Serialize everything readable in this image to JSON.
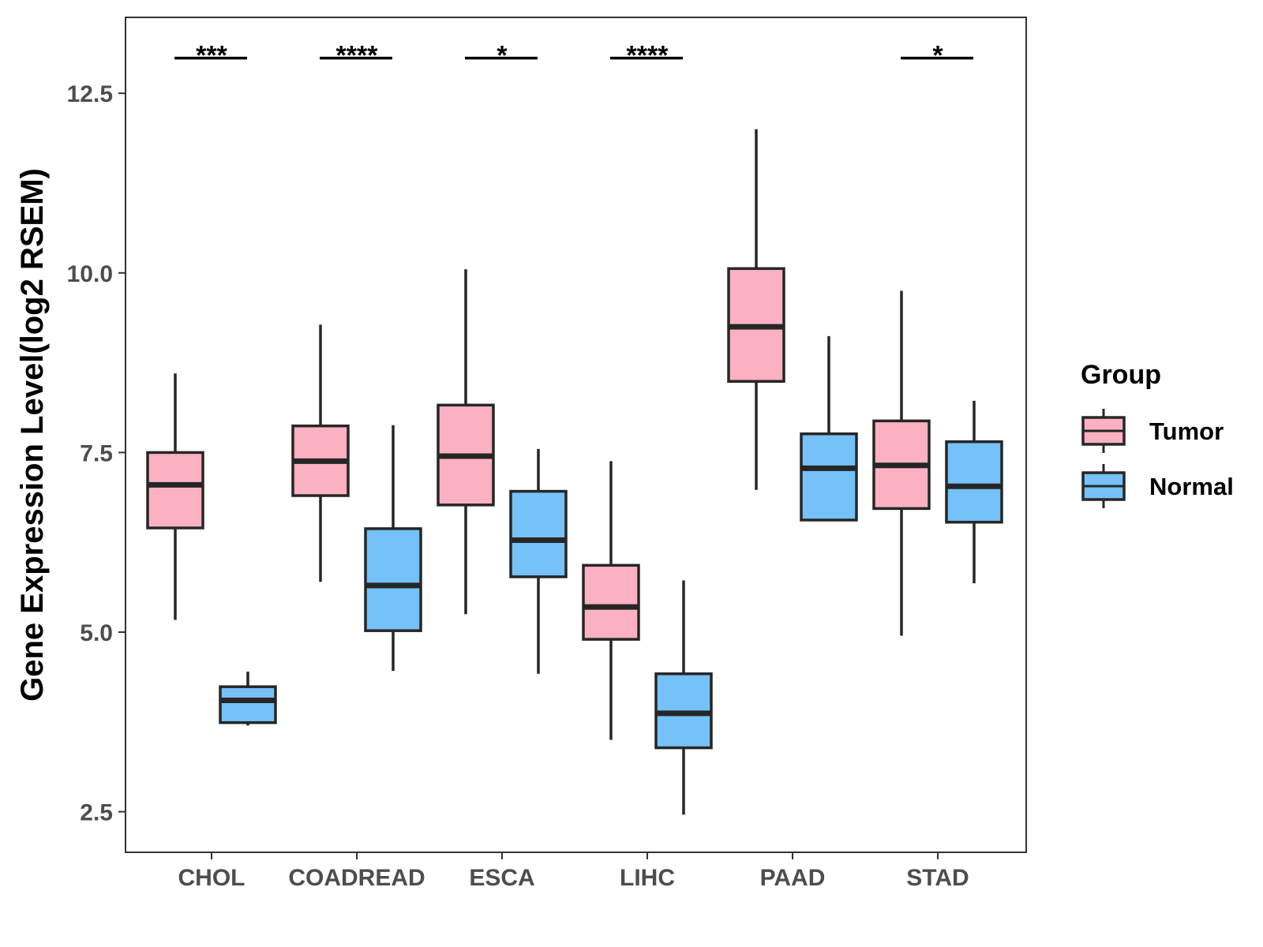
{
  "chart_data": {
    "type": "boxplot",
    "title": "",
    "xlabel": "",
    "ylabel": "Gene Expression Level(log2 RSEM)",
    "ylim": [
      1.9,
      13.5
    ],
    "yticks": [
      2.5,
      5.0,
      7.5,
      10.0,
      12.5
    ],
    "ytick_labels": [
      "2.5",
      "5.0",
      "7.5",
      "10.0",
      "12.5"
    ],
    "grid": false,
    "categories": [
      "CHOL",
      "COADREAD",
      "ESCA",
      "LIHC",
      "PAAD",
      "STAD"
    ],
    "legend": {
      "title": "Group",
      "position": "right",
      "entries": [
        {
          "name": "Tumor",
          "color": "#fbb1c2"
        },
        {
          "name": "Normal",
          "color": "#75c1f8"
        }
      ]
    },
    "series": [
      {
        "name": "Tumor",
        "color": "#fbb1c2",
        "boxes": [
          {
            "category": "CHOL",
            "whisker_low": 5.17,
            "q1": 6.45,
            "median": 7.05,
            "q3": 7.5,
            "whisker_high": 8.6
          },
          {
            "category": "COADREAD",
            "whisker_low": 5.7,
            "q1": 6.9,
            "median": 7.38,
            "q3": 7.87,
            "whisker_high": 9.28
          },
          {
            "category": "ESCA",
            "whisker_low": 5.25,
            "q1": 6.77,
            "median": 7.45,
            "q3": 8.16,
            "whisker_high": 10.05
          },
          {
            "category": "LIHC",
            "whisker_low": 3.5,
            "q1": 4.9,
            "median": 5.35,
            "q3": 5.93,
            "whisker_high": 7.38
          },
          {
            "category": "PAAD",
            "whisker_low": 6.98,
            "q1": 8.49,
            "median": 9.25,
            "q3": 10.06,
            "whisker_high": 12.0
          },
          {
            "category": "STAD",
            "whisker_low": 4.95,
            "q1": 6.72,
            "median": 7.32,
            "q3": 7.94,
            "whisker_high": 9.75
          }
        ]
      },
      {
        "name": "Normal",
        "color": "#75c1f8",
        "boxes": [
          {
            "category": "CHOL",
            "whisker_low": 3.7,
            "q1": 3.74,
            "median": 4.05,
            "q3": 4.24,
            "whisker_high": 4.45
          },
          {
            "category": "COADREAD",
            "whisker_low": 4.46,
            "q1": 5.02,
            "median": 5.65,
            "q3": 6.44,
            "whisker_high": 7.88
          },
          {
            "category": "ESCA",
            "whisker_low": 4.42,
            "q1": 5.77,
            "median": 6.28,
            "q3": 6.96,
            "whisker_high": 7.55
          },
          {
            "category": "LIHC",
            "whisker_low": 2.46,
            "q1": 3.39,
            "median": 3.87,
            "q3": 4.42,
            "whisker_high": 5.72
          },
          {
            "category": "PAAD",
            "whisker_low": 6.56,
            "q1": 6.56,
            "median": 7.28,
            "q3": 7.76,
            "whisker_high": 9.12
          },
          {
            "category": "STAD",
            "whisker_low": 5.68,
            "q1": 6.53,
            "median": 7.03,
            "q3": 7.65,
            "whisker_high": 8.22
          }
        ]
      }
    ],
    "annotations": [
      {
        "category": "CHOL",
        "label": "***"
      },
      {
        "category": "COADREAD",
        "label": "****"
      },
      {
        "category": "ESCA",
        "label": "*"
      },
      {
        "category": "LIHC",
        "label": "****"
      },
      {
        "category": "PAAD",
        "label": ""
      },
      {
        "category": "STAD",
        "label": "*"
      }
    ],
    "annotation_y": 13.0
  }
}
